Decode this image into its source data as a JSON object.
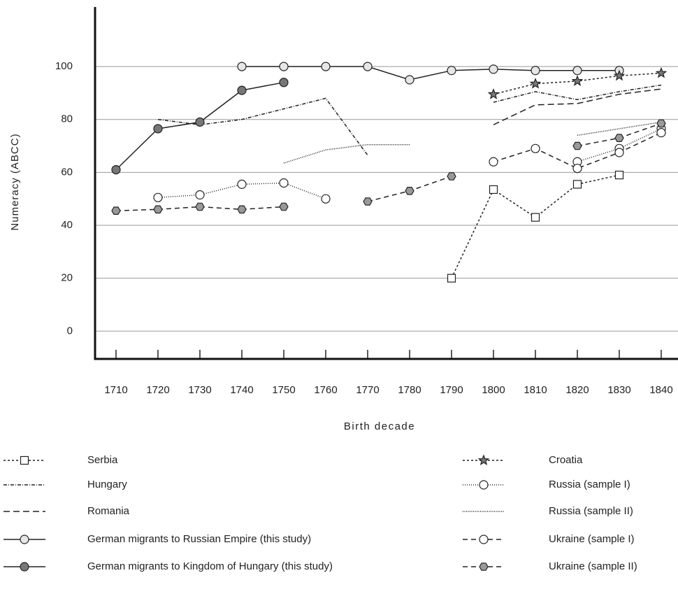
{
  "chart_data": {
    "type": "line",
    "x_label": "Birth decade",
    "y_label": "Numeracy (ABCC)",
    "x": [
      1710,
      1720,
      1730,
      1740,
      1750,
      1760,
      1770,
      1780,
      1790,
      1800,
      1810,
      1820,
      1830,
      1840
    ],
    "xlim": [
      1705,
      1844
    ],
    "ylim": [
      -10.5,
      122.5
    ],
    "yticks": [
      0,
      20,
      40,
      60,
      80,
      100
    ],
    "grid": true,
    "series": [
      {
        "name": "Serbia",
        "color": "#222",
        "dash": "3 3",
        "marker": "square",
        "marker_fill": "#fff",
        "values": [
          null,
          null,
          null,
          null,
          null,
          null,
          null,
          null,
          20,
          53.5,
          43,
          55.5,
          59,
          null
        ]
      },
      {
        "name": "Hungary",
        "color": "#222",
        "dash": "5 2 1 2",
        "marker": "none",
        "values": [
          null,
          80,
          78,
          80,
          84,
          88,
          66.5,
          null,
          null,
          86.5,
          90.5,
          87.5,
          90.5,
          93
        ]
      },
      {
        "name": "Romania",
        "color": "#222",
        "dash": "9 5",
        "marker": "none",
        "values": [
          null,
          null,
          null,
          null,
          null,
          null,
          null,
          null,
          null,
          78,
          85.5,
          86,
          89.5,
          91.5
        ]
      },
      {
        "name": "German migrants to Russian Empire (this study)",
        "color": "#222",
        "dash": "none",
        "marker": "circle",
        "marker_fill": "#e6e6e6",
        "values": [
          null,
          null,
          null,
          100,
          100,
          100,
          100,
          95,
          98.5,
          99,
          98.5,
          98.5,
          98.5,
          null
        ]
      },
      {
        "name": "German migrants to Kingdom of Hungary (this study)",
        "color": "#222",
        "dash": "none",
        "marker": "circle",
        "marker_fill": "#777",
        "values": [
          61,
          76.5,
          79,
          91,
          94,
          null,
          null,
          null,
          null,
          null,
          null,
          null,
          null,
          null
        ]
      },
      {
        "name": "Croatia",
        "color": "#222",
        "dash": "3 3",
        "marker": "star",
        "marker_fill": "#777",
        "values": [
          null,
          null,
          null,
          null,
          null,
          null,
          null,
          null,
          null,
          89.5,
          93.5,
          94.5,
          96.5,
          97.5
        ]
      },
      {
        "name": "Russia (sample I)",
        "color": "#222",
        "dash": "1 2",
        "marker": "circle",
        "marker_fill": "#fff",
        "values": [
          null,
          50.5,
          51.5,
          55.5,
          56,
          50,
          null,
          null,
          null,
          null,
          null,
          64,
          69,
          76.5
        ]
      },
      {
        "name": "Russia (sample II)",
        "color": "#222",
        "dash": "1 1.5",
        "marker": "none",
        "values": [
          null,
          null,
          null,
          null,
          63.5,
          68.5,
          70.5,
          70.5,
          null,
          null,
          null,
          74,
          76.5,
          79
        ]
      },
      {
        "name": "Ukraine (sample I)",
        "color": "#222",
        "dash": "7 5",
        "marker": "circle",
        "marker_fill": "#fff",
        "values": [
          null,
          null,
          null,
          null,
          null,
          null,
          null,
          null,
          null,
          64,
          69,
          61.5,
          67.5,
          75
        ]
      },
      {
        "name": "Ukraine (sample II)",
        "color": "#222",
        "dash": "7 5",
        "marker": "hexagon",
        "marker_fill": "#999",
        "values": [
          45.5,
          46,
          47,
          46,
          47,
          null,
          49,
          53,
          58.5,
          null,
          null,
          70,
          73,
          78.5
        ]
      }
    ]
  }
}
